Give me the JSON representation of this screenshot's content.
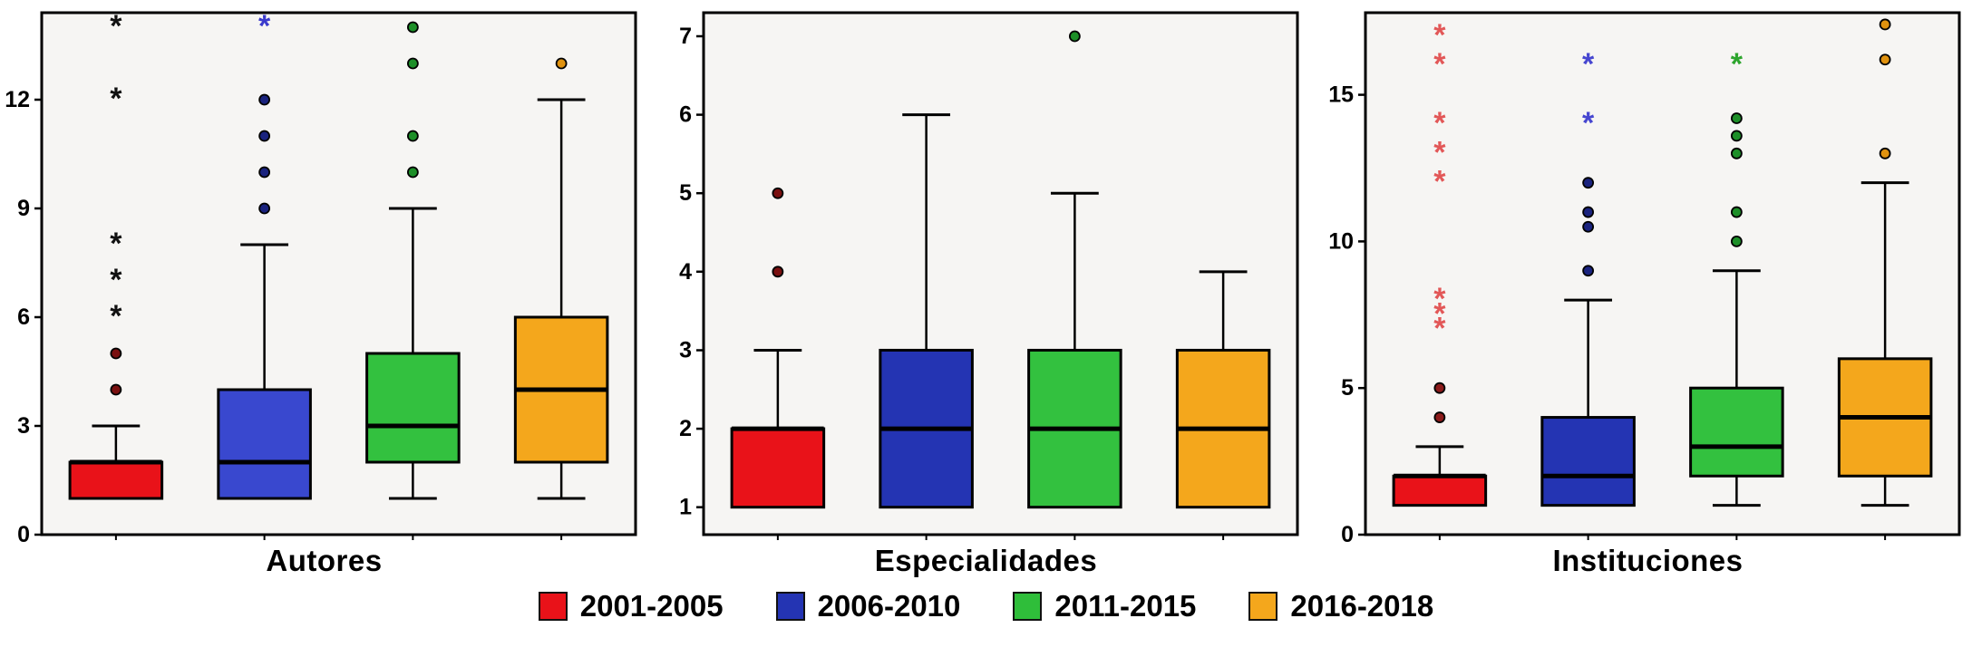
{
  "legend": {
    "items": [
      {
        "label": "2001-2005",
        "color": "#e91219"
      },
      {
        "label": "2006-2010",
        "color": "#2434b3"
      },
      {
        "label": "2011-2015",
        "color": "#2fbe3a"
      },
      {
        "label": "2016-2018",
        "color": "#f4a71c"
      }
    ]
  },
  "chart_data": [
    {
      "type": "boxplot",
      "title": "Autores",
      "xlabel": "",
      "ylabel": "",
      "ylim": [
        0,
        14.4
      ],
      "yticks": [
        0,
        3,
        6,
        9,
        12
      ],
      "grid": false,
      "plot_bg": "#f6f5f3",
      "series": [
        {
          "name": "2001-2005",
          "color": "#e91219",
          "whisker_low": 1,
          "q1": 1,
          "median": 2,
          "q3": 2,
          "whisker_high": 3,
          "outliers": [
            4,
            5
          ],
          "extremes": [
            6,
            7,
            8,
            12,
            14
          ],
          "outlier_color": "#7a1010",
          "extreme_color": "#111111"
        },
        {
          "name": "2006-2010",
          "color": "#3948cf",
          "whisker_low": 1,
          "q1": 1,
          "median": 2,
          "q3": 4,
          "whisker_high": 8,
          "outliers": [
            9,
            10,
            11,
            12
          ],
          "extremes": [
            14
          ],
          "outlier_color": "#1a237e",
          "extreme_color": "#3a3acc"
        },
        {
          "name": "2011-2015",
          "color": "#33c13f",
          "whisker_low": 1,
          "q1": 2,
          "median": 3,
          "q3": 5,
          "whisker_high": 9,
          "outliers": [
            10,
            11,
            13,
            14
          ],
          "extremes": [],
          "outlier_color": "#1d8f28",
          "extreme_color": "#1d8f28"
        },
        {
          "name": "2016-2018",
          "color": "#f4a71c",
          "whisker_low": 1,
          "q1": 2,
          "median": 4,
          "q3": 6,
          "whisker_high": 12,
          "outliers": [
            13
          ],
          "extremes": [],
          "outlier_color": "#e0920f",
          "extreme_color": "#e0920f"
        }
      ]
    },
    {
      "type": "boxplot",
      "title": "Especialidades",
      "xlabel": "",
      "ylabel": "",
      "ylim": [
        0.65,
        7.3
      ],
      "yticks": [
        1,
        2,
        3,
        4,
        5,
        6,
        7
      ],
      "grid": false,
      "plot_bg": "#f6f5f3",
      "series": [
        {
          "name": "2001-2005",
          "color": "#e91219",
          "whisker_low": 1,
          "q1": 1,
          "median": 2,
          "q3": 2,
          "whisker_high": 3,
          "outliers": [
            4,
            5
          ],
          "extremes": [],
          "outlier_color": "#7a1010",
          "extreme_color": "#111111"
        },
        {
          "name": "2006-2010",
          "color": "#2434b3",
          "whisker_low": 1,
          "q1": 1,
          "median": 2,
          "q3": 3,
          "whisker_high": 6,
          "outliers": [],
          "extremes": [],
          "outlier_color": "#1a237e",
          "extreme_color": "#3a3acc"
        },
        {
          "name": "2011-2015",
          "color": "#33c13f",
          "whisker_low": 1,
          "q1": 1,
          "median": 2,
          "q3": 3,
          "whisker_high": 5,
          "outliers": [
            7
          ],
          "extremes": [],
          "outlier_color": "#1d8f28",
          "extreme_color": "#1d8f28"
        },
        {
          "name": "2016-2018",
          "color": "#f4a71c",
          "whisker_low": 1,
          "q1": 1,
          "median": 2,
          "q3": 3,
          "whisker_high": 4,
          "outliers": [],
          "extremes": [],
          "outlier_color": "#e0920f",
          "extreme_color": "#e0920f"
        }
      ]
    },
    {
      "type": "boxplot",
      "title": "Instituciones",
      "xlabel": "",
      "ylabel": "",
      "ylim": [
        0,
        17.8
      ],
      "yticks": [
        0,
        5,
        10,
        15
      ],
      "grid": false,
      "plot_bg": "#f6f5f3",
      "series": [
        {
          "name": "2001-2005",
          "color": "#e91219",
          "whisker_low": 1,
          "q1": 1,
          "median": 2,
          "q3": 2,
          "whisker_high": 3,
          "outliers": [
            4,
            5
          ],
          "extremes": [
            7,
            7.5,
            8,
            12,
            13,
            14,
            16,
            17
          ],
          "outlier_color": "#8b1a1a",
          "extreme_color": "#e25757"
        },
        {
          "name": "2006-2010",
          "color": "#2434b3",
          "whisker_low": 1,
          "q1": 1,
          "median": 2,
          "q3": 4,
          "whisker_high": 8,
          "outliers": [
            9,
            10.5,
            11,
            12
          ],
          "extremes": [
            14,
            16
          ],
          "outlier_color": "#1a237e",
          "extreme_color": "#4646d0"
        },
        {
          "name": "2011-2015",
          "color": "#33c13f",
          "whisker_low": 1,
          "q1": 2,
          "median": 3,
          "q3": 5,
          "whisker_high": 9,
          "outliers": [
            10,
            11,
            13,
            13.6,
            14.2
          ],
          "extremes": [
            16
          ],
          "outlier_color": "#1d8f28",
          "extreme_color": "#2da52d"
        },
        {
          "name": "2016-2018",
          "color": "#f4a71c",
          "whisker_low": 1,
          "q1": 2,
          "median": 4,
          "q3": 6,
          "whisker_high": 12,
          "outliers": [
            13,
            16.2,
            17.4
          ],
          "extremes": [],
          "outlier_color": "#e0920f",
          "extreme_color": "#e0920f"
        }
      ]
    }
  ]
}
